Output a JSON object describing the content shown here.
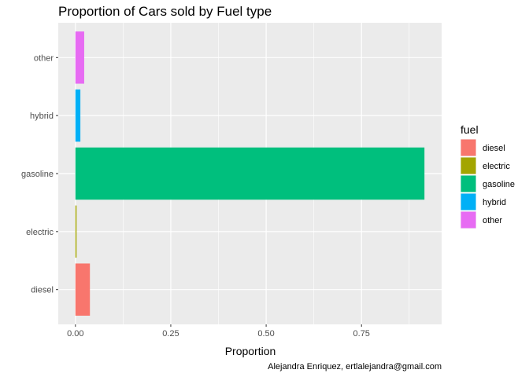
{
  "chart_data": {
    "type": "bar",
    "orientation": "horizontal",
    "title": "Proportion of Cars sold by Fuel type",
    "xlabel": "Proportion",
    "ylabel": "",
    "caption": "Alejandra Enriquez, ertlalejandra@gmail.com",
    "categories": [
      "diesel",
      "electric",
      "gasoline",
      "hybrid",
      "other"
    ],
    "values": [
      0.038,
      0.003,
      0.915,
      0.013,
      0.023
    ],
    "colors": [
      "#F8766D",
      "#A3A500",
      "#00BF7D",
      "#00B0F6",
      "#E76BF3"
    ],
    "xlim": [
      -0.045,
      0.96
    ],
    "xticks": [
      0.0,
      0.25,
      0.5,
      0.75
    ],
    "xtick_labels": [
      "0.00",
      "0.25",
      "0.50",
      "0.75"
    ],
    "grid": true,
    "panel_background": "#EBEBEB",
    "legend": {
      "title": "fuel",
      "position": "right",
      "labels": [
        "diesel",
        "electric",
        "gasoline",
        "hybrid",
        "other"
      ]
    }
  }
}
